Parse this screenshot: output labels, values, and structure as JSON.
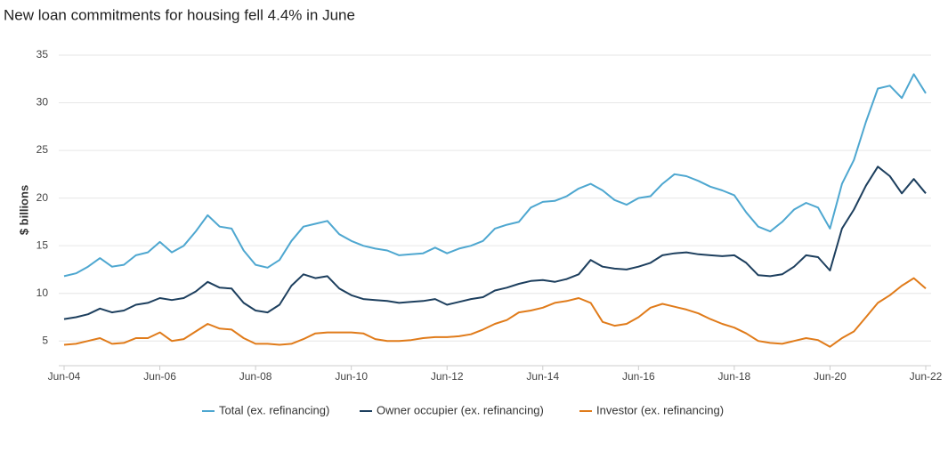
{
  "chart_data": {
    "type": "line",
    "title": "New loan commitments for housing fell 4.4% in June",
    "y_label": "$ billions",
    "categories": [
      "Jun-04",
      null,
      null,
      null,
      null,
      null,
      null,
      null,
      "Jun-06",
      null,
      null,
      null,
      null,
      null,
      null,
      null,
      "Jun-08",
      null,
      null,
      null,
      null,
      null,
      null,
      null,
      "Jun-10",
      null,
      null,
      null,
      null,
      null,
      null,
      null,
      "Jun-12",
      null,
      null,
      null,
      null,
      null,
      null,
      null,
      "Jun-14",
      null,
      null,
      null,
      null,
      null,
      null,
      null,
      "Jun-16",
      null,
      null,
      null,
      null,
      null,
      null,
      null,
      "Jun-18",
      null,
      null,
      null,
      null,
      null,
      null,
      null,
      "Jun-20",
      null,
      null,
      null,
      null,
      null,
      null,
      null,
      "Jun-22"
    ],
    "series": [
      {
        "name": "Total (ex. refinancing)",
        "color": "#4ea7d0",
        "values": [
          11.8,
          12.1,
          12.8,
          13.7,
          12.8,
          13.0,
          14.0,
          14.3,
          15.4,
          14.3,
          15.0,
          16.5,
          18.2,
          17.0,
          16.8,
          14.5,
          13.0,
          12.7,
          13.5,
          15.5,
          17.0,
          17.3,
          17.6,
          16.2,
          15.5,
          15.0,
          14.7,
          14.5,
          14.0,
          14.1,
          14.2,
          14.8,
          14.2,
          14.7,
          15.0,
          15.5,
          16.8,
          17.2,
          17.5,
          19.0,
          19.6,
          19.7,
          20.2,
          21.0,
          21.5,
          20.8,
          19.8,
          19.3,
          20.0,
          20.2,
          21.5,
          22.5,
          22.3,
          21.8,
          21.2,
          20.8,
          20.3,
          18.5,
          17.0,
          16.5,
          17.5,
          18.8,
          19.5,
          19.0,
          16.8,
          21.5,
          24.0,
          28.0,
          31.5,
          31.8,
          30.5,
          33.0,
          31.0
        ]
      },
      {
        "name": "Owner occupier (ex. refinancing)",
        "color": "#1d3f5e",
        "values": [
          7.3,
          7.5,
          7.8,
          8.4,
          8.0,
          8.2,
          8.8,
          9.0,
          9.5,
          9.3,
          9.5,
          10.2,
          11.2,
          10.6,
          10.5,
          9.0,
          8.2,
          8.0,
          8.8,
          10.8,
          12.0,
          11.6,
          11.8,
          10.5,
          9.8,
          9.4,
          9.3,
          9.2,
          9.0,
          9.1,
          9.2,
          9.4,
          8.8,
          9.1,
          9.4,
          9.6,
          10.3,
          10.6,
          11.0,
          11.3,
          11.4,
          11.2,
          11.5,
          12.0,
          13.5,
          12.8,
          12.6,
          12.5,
          12.8,
          13.2,
          14.0,
          14.2,
          14.3,
          14.1,
          14.0,
          13.9,
          14.0,
          13.2,
          11.9,
          11.8,
          12.0,
          12.8,
          14.0,
          13.8,
          12.4,
          16.8,
          18.8,
          21.3,
          23.3,
          22.3,
          20.5,
          22.0,
          20.5
        ]
      },
      {
        "name": "Investor (ex. refinancing)",
        "color": "#e07b1a",
        "values": [
          4.6,
          4.7,
          5.0,
          5.3,
          4.7,
          4.8,
          5.3,
          5.3,
          5.9,
          5.0,
          5.2,
          6.0,
          6.8,
          6.3,
          6.2,
          5.3,
          4.7,
          4.7,
          4.6,
          4.7,
          5.2,
          5.8,
          5.9,
          5.9,
          5.9,
          5.8,
          5.2,
          5.0,
          5.0,
          5.1,
          5.3,
          5.4,
          5.4,
          5.5,
          5.7,
          6.2,
          6.8,
          7.2,
          8.0,
          8.2,
          8.5,
          9.0,
          9.2,
          9.5,
          9.0,
          7.0,
          6.6,
          6.8,
          7.5,
          8.5,
          8.9,
          8.6,
          8.3,
          7.9,
          7.3,
          6.8,
          6.4,
          5.8,
          5.0,
          4.8,
          4.7,
          5.0,
          5.3,
          5.1,
          4.4,
          5.3,
          6.0,
          7.5,
          9.0,
          9.8,
          10.8,
          11.6,
          10.5
        ]
      }
    ],
    "ylim": [
      2.5,
      35
    ],
    "yticks": [
      5,
      10,
      15,
      20,
      25,
      30,
      35
    ],
    "grid": true,
    "legend": "bottom"
  }
}
